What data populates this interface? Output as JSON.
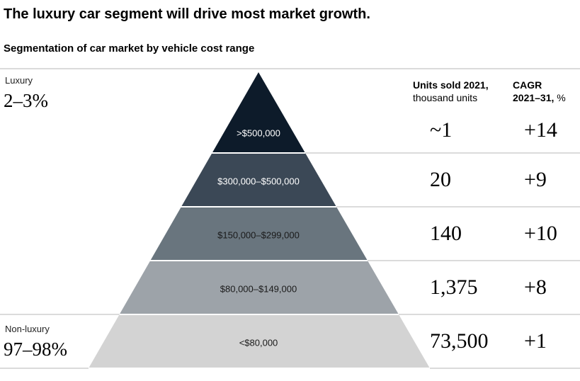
{
  "title": "The luxury car segment will drive most market growth.",
  "subtitle": "Segmentation of car market by vehicle cost range",
  "groups": {
    "luxury": {
      "label": "Luxury",
      "share": "2–3%"
    },
    "non_luxury": {
      "label": "Non-luxury",
      "share": "97–98%"
    }
  },
  "headers": {
    "units_bold": "Units sold 2021,",
    "units_unit": "thousand units",
    "cagr_bold_1": "CAGR",
    "cagr_bold_2": "2021–31,",
    "cagr_unit": "%"
  },
  "tiers": [
    {
      "range": ">$500,000",
      "units": "~1",
      "cagr": "+14",
      "color": "#0d1b2a",
      "text_color": "#ffffff"
    },
    {
      "range": "$300,000–$500,000",
      "units": "20",
      "cagr": "+9",
      "color": "#3b4856",
      "text_color": "#ffffff"
    },
    {
      "range": "$150,000–$299,000",
      "units": "140",
      "cagr": "+10",
      "color": "#69757e",
      "text_color": "#1a1a1a"
    },
    {
      "range": "$80,000–$149,000",
      "units": "1,375",
      "cagr": "+8",
      "color": "#9da3a9",
      "text_color": "#1a1a1a"
    },
    {
      "range": "<$80,000",
      "units": "73,500",
      "cagr": "+1",
      "color": "#d3d3d3",
      "text_color": "#1a1a1a"
    }
  ]
}
